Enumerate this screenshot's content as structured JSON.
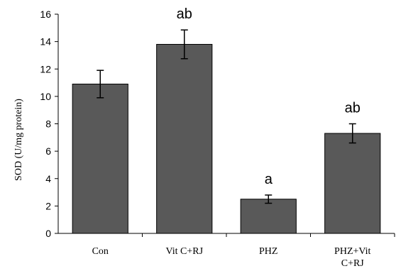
{
  "chart_data": {
    "type": "bar",
    "title": "",
    "xlabel": "",
    "ylabel": "SOD (U/mg protein)",
    "ylim": [
      0,
      16
    ],
    "yticks": [
      0,
      2,
      4,
      6,
      8,
      10,
      12,
      14,
      16
    ],
    "grid": false,
    "categories": [
      [
        "Con"
      ],
      [
        "Vit C+RJ"
      ],
      [
        "PHZ"
      ],
      [
        "PHZ+Vit",
        "C+RJ"
      ]
    ],
    "values": [
      10.9,
      13.8,
      2.5,
      7.3
    ],
    "errors": [
      1.0,
      1.05,
      0.3,
      0.7
    ],
    "annotations": [
      "",
      "ab",
      "a",
      "ab"
    ],
    "colors": {
      "bar": "#595959",
      "bar_stroke": "#000000",
      "axis": "#000000"
    }
  }
}
